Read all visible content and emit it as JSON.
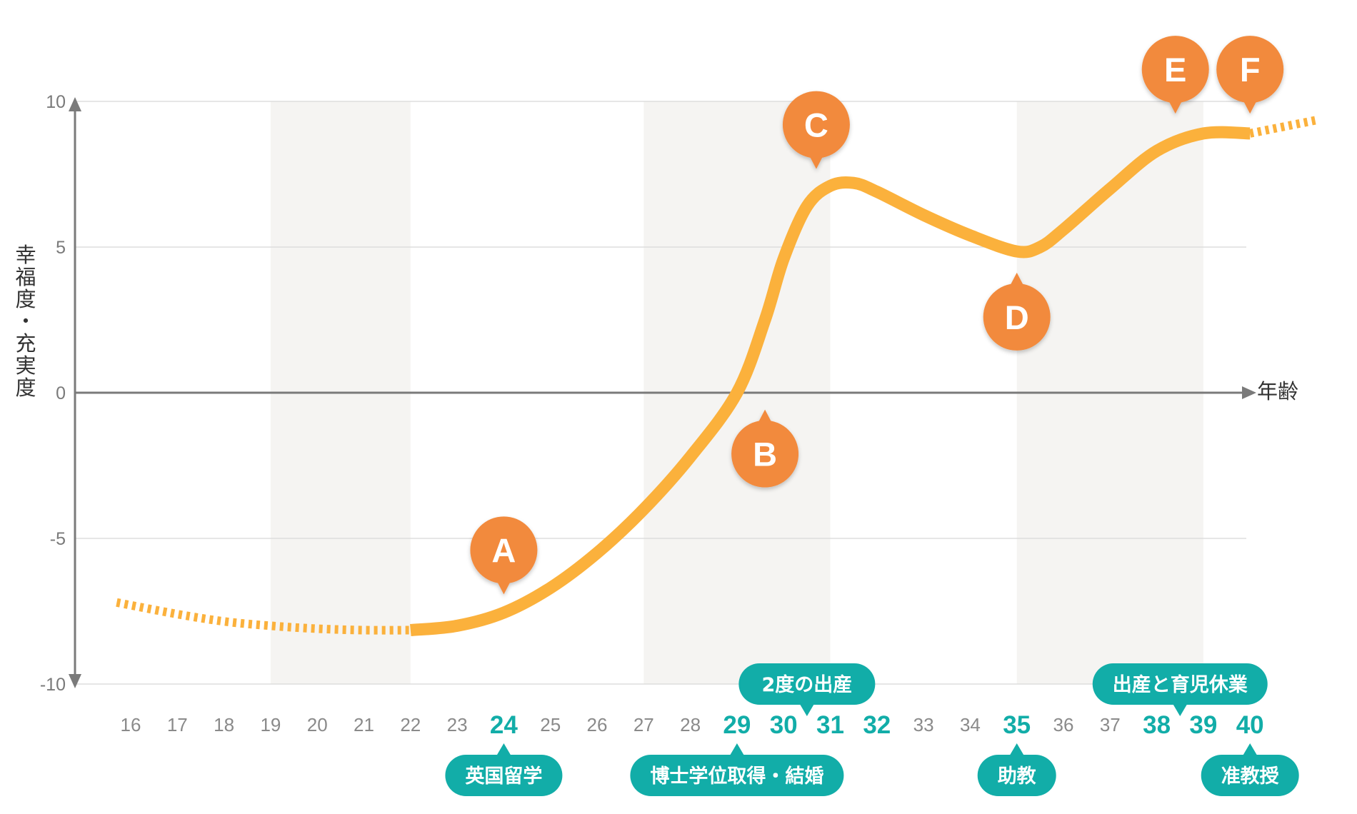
{
  "chart_data": {
    "type": "line",
    "xlabel": "年齢",
    "ylabel": "幸福度・充実度",
    "ylim": [
      -10,
      10
    ],
    "yticks": [
      "10",
      "5",
      "0",
      "-5",
      "-10"
    ],
    "x_categories": [
      "16",
      "17",
      "18",
      "19",
      "20",
      "21",
      "22",
      "23",
      "24",
      "25",
      "26",
      "27",
      "28",
      "29",
      "30",
      "31",
      "32",
      "33",
      "34",
      "35",
      "36",
      "37",
      "38",
      "39",
      "40"
    ],
    "highlighted_ages": [
      "24",
      "29",
      "30",
      "31",
      "32",
      "35",
      "38",
      "39",
      "40"
    ],
    "shaded_bands": [
      [
        19,
        22
      ],
      [
        27,
        31
      ],
      [
        35,
        39
      ]
    ],
    "curve_dotted_start": [
      [
        15.7,
        -7.2
      ],
      [
        17,
        -7.6
      ],
      [
        18,
        -7.85
      ],
      [
        19,
        -8.0
      ],
      [
        20,
        -8.1
      ],
      [
        21,
        -8.15
      ],
      [
        22,
        -8.15
      ]
    ],
    "curve_solid": [
      [
        22,
        -8.15
      ],
      [
        23,
        -8.0
      ],
      [
        24,
        -7.55
      ],
      [
        25,
        -6.7
      ],
      [
        26,
        -5.5
      ],
      [
        27,
        -4.0
      ],
      [
        28,
        -2.2
      ],
      [
        29,
        0.0
      ],
      [
        29.6,
        2.5
      ],
      [
        30,
        4.6
      ],
      [
        30.5,
        6.4
      ],
      [
        31,
        7.1
      ],
      [
        31.5,
        7.2
      ],
      [
        32,
        6.9
      ],
      [
        33,
        6.1
      ],
      [
        34,
        5.4
      ],
      [
        35,
        4.85
      ],
      [
        35.5,
        5.0
      ],
      [
        36,
        5.6
      ],
      [
        37,
        7.0
      ],
      [
        38,
        8.3
      ],
      [
        39,
        8.9
      ],
      [
        40,
        8.9
      ]
    ],
    "curve_dotted_end": [
      [
        40,
        8.9
      ],
      [
        41.4,
        9.35
      ]
    ],
    "markers": [
      {
        "label": "A",
        "x": 24,
        "y": -5.4,
        "pointer": "down"
      },
      {
        "label": "B",
        "x": 29.6,
        "y": -2.1,
        "pointer": "up"
      },
      {
        "label": "C",
        "x": 30.7,
        "y": 9.2,
        "pointer": "down"
      },
      {
        "label": "D",
        "x": 35,
        "y": 2.6,
        "pointer": "up"
      },
      {
        "label": "E",
        "x": 38.4,
        "y": 11.1,
        "pointer": "down"
      },
      {
        "label": "F",
        "x": 40,
        "y": 11.1,
        "pointer": "down"
      }
    ],
    "events": [
      {
        "text": "英国留学",
        "at": 24,
        "side": "below"
      },
      {
        "text": "博士学位取得・結婚",
        "at": 29,
        "side": "below"
      },
      {
        "text": "2度の出産",
        "at": 30.5,
        "side": "above"
      },
      {
        "text": "助教",
        "at": 35,
        "side": "below"
      },
      {
        "text": "出産と育児休業",
        "at": 38.5,
        "side": "above"
      },
      {
        "text": "准教授",
        "at": 40,
        "side": "below"
      }
    ]
  },
  "colors": {
    "curve": "#fbb13c",
    "marker": "#f28a3c",
    "pill": "#12ada8",
    "band": "#f5f4f2",
    "grid": "#dddddd",
    "axis": "#7a7a7a"
  }
}
